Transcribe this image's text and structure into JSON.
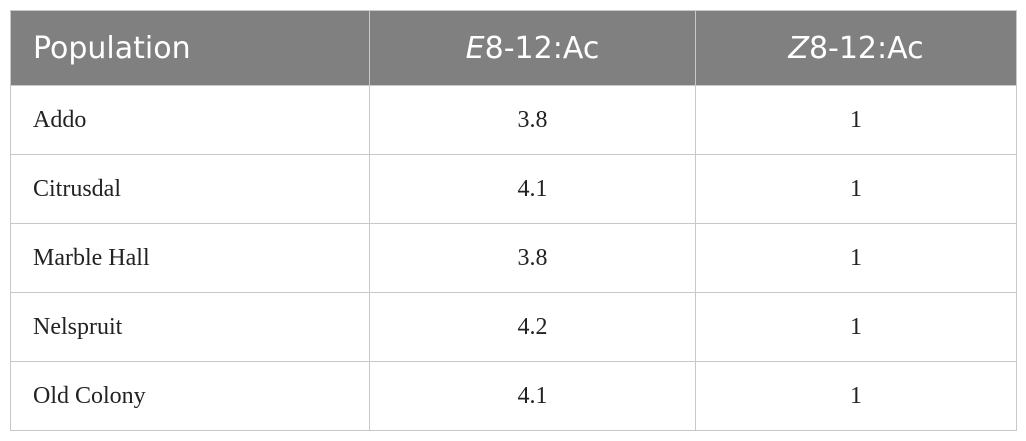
{
  "table": {
    "header": [
      [
        {
          "text": "Population"
        }
      ],
      [
        {
          "text": "E",
          "italic": true
        },
        {
          "text": "8-12:Ac"
        }
      ],
      [
        {
          "text": "Z",
          "italic": true
        },
        {
          "text": "8-12:Ac"
        }
      ]
    ],
    "rows": [
      [
        "Addo",
        3.8,
        1
      ],
      [
        "Citrusdal",
        4.1,
        1
      ],
      [
        "Marble Hall",
        3.8,
        1
      ],
      [
        "Nelspruit",
        4.2,
        1
      ],
      [
        "Old Colony",
        4.1,
        1
      ]
    ]
  }
}
